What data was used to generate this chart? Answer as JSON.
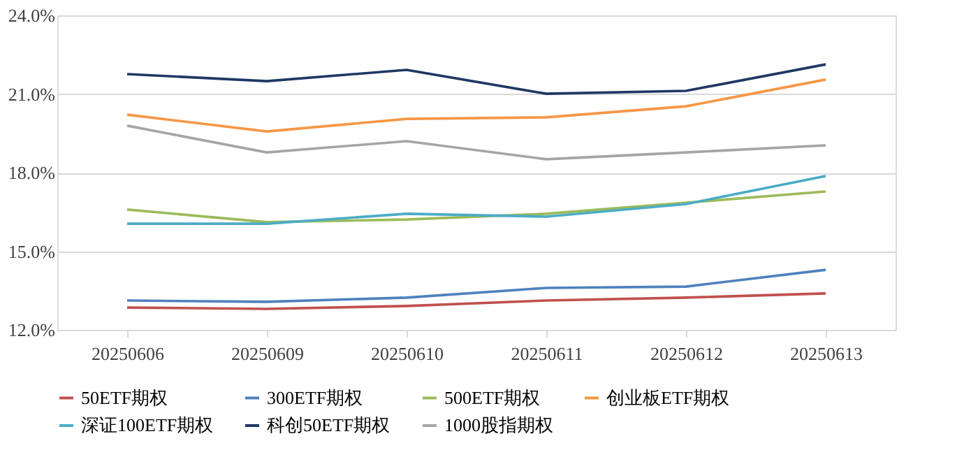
{
  "chart_data": {
    "type": "line",
    "categories": [
      "20250606",
      "20250609",
      "20250610",
      "20250611",
      "20250612",
      "20250613"
    ],
    "ylim": [
      12,
      24
    ],
    "yticks": [
      {
        "value": 12,
        "label": "12.0%"
      },
      {
        "value": 15,
        "label": "15.0%"
      },
      {
        "value": 18,
        "label": "18.0%"
      },
      {
        "value": 21,
        "label": "21.0%"
      },
      {
        "value": 24,
        "label": "24.0%"
      }
    ],
    "grid": "y",
    "legend": "bottom",
    "marker": "none",
    "line_style": "solid",
    "series": [
      {
        "name": "50ETF期权",
        "color": "#c0504d",
        "values": [
          12.85,
          12.8,
          12.91,
          13.12,
          13.23,
          13.39
        ]
      },
      {
        "name": "300ETF期权",
        "color": "#4f81bd",
        "values": [
          13.12,
          13.07,
          13.23,
          13.6,
          13.65,
          14.29
        ]
      },
      {
        "name": "500ETF期权",
        "color": "#9bbb59",
        "values": [
          16.59,
          16.11,
          16.21,
          16.43,
          16.85,
          17.28
        ]
      },
      {
        "name": "创业板ETF期权",
        "color": "#f79646",
        "values": [
          20.21,
          19.57,
          20.05,
          20.11,
          20.53,
          21.55
        ]
      },
      {
        "name": "深证100ETF期权",
        "color": "#4bacc6",
        "values": [
          16.05,
          16.05,
          16.43,
          16.32,
          16.8,
          17.87
        ]
      },
      {
        "name": "科创50ETF期权",
        "color": "#1f3864",
        "values": [
          21.76,
          21.49,
          21.92,
          21.01,
          21.12,
          22.13
        ]
      },
      {
        "name": "1000股指期权",
        "color": "#a5a5a5",
        "values": [
          19.79,
          18.77,
          19.2,
          18.51,
          18.77,
          19.04
        ]
      }
    ]
  }
}
